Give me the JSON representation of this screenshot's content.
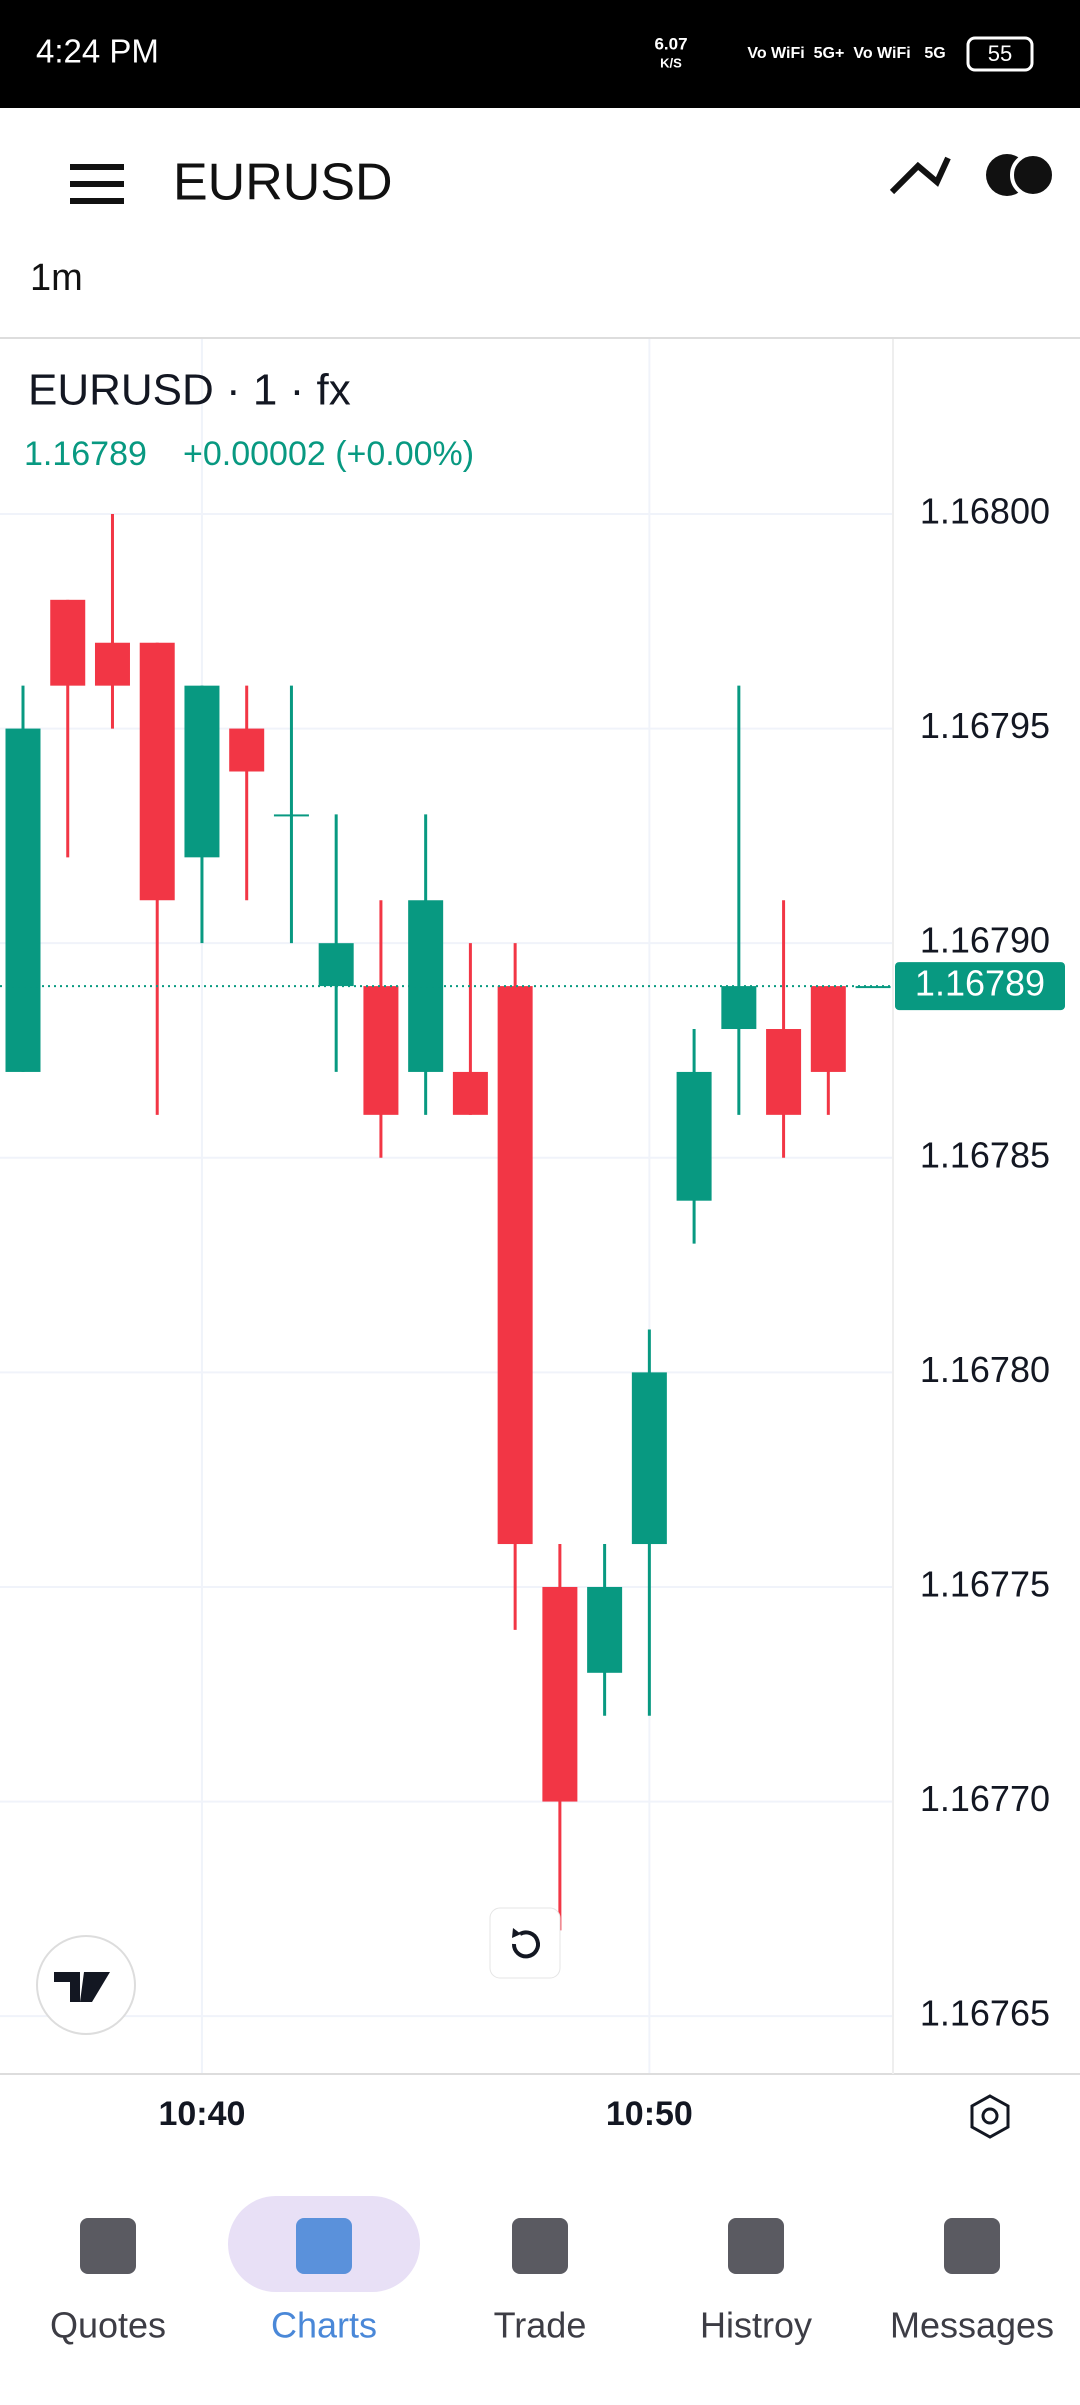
{
  "status_bar": {
    "time": "4:24 PM",
    "speed": "6.07",
    "speed_unit": "K/S",
    "indicators": [
      "Vo WiFi",
      "5G+",
      "Vo WiFi",
      "5G"
    ],
    "battery": "55"
  },
  "app_bar": {
    "title": "EURUSD",
    "interval": "1m"
  },
  "chart_data": {
    "type": "candlestick",
    "title": "EURUSD · 1 · fx",
    "change": "+0.00002 (+0.00%)",
    "last_price": 1.16789,
    "categories": [
      null,
      null,
      null,
      null,
      "10:40",
      null,
      null,
      null,
      null,
      null,
      null,
      null,
      null,
      null,
      "10:50",
      null,
      null,
      null,
      null,
      null
    ],
    "series": [
      {
        "open": [
          1.16787,
          1.16798,
          1.16797,
          1.16797,
          1.16792,
          1.16795,
          1.16793,
          1.16789,
          1.16789,
          1.16787,
          1.16787,
          1.16789,
          1.16775,
          1.16773,
          1.16776,
          1.16784,
          1.16788,
          1.16788,
          1.16789,
          1.16789
        ],
        "high": [
          1.16796,
          1.16798,
          1.168,
          1.16797,
          1.16796,
          1.16796,
          1.16796,
          1.16793,
          1.16791,
          1.16793,
          1.1679,
          1.1679,
          1.16776,
          1.16776,
          1.16781,
          1.16788,
          1.16796,
          1.16791,
          1.16789,
          1.16789
        ],
        "low": [
          1.16787,
          1.16792,
          1.16795,
          1.16786,
          1.1679,
          1.16791,
          1.1679,
          1.16787,
          1.16785,
          1.16786,
          1.16786,
          1.16774,
          1.16767,
          1.16772,
          1.16772,
          1.16783,
          1.16786,
          1.16785,
          1.16786,
          1.16789
        ],
        "close": [
          1.16795,
          1.16796,
          1.16796,
          1.16791,
          1.16796,
          1.16794,
          1.16793,
          1.1679,
          1.16786,
          1.16791,
          1.16786,
          1.16776,
          1.1677,
          1.16775,
          1.1678,
          1.16787,
          1.16789,
          1.16786,
          1.16787,
          1.16789
        ]
      }
    ],
    "up_color": "#089981",
    "down_color": "#f23645",
    "ylim": [
      1.16763,
      1.16804
    ],
    "yticks": [
      {
        "value": 1.168,
        "label": "1.16800"
      },
      1.16795,
      {
        "value": 1.1679,
        "label": "1.16790"
      },
      1.16785,
      {
        "value": 1.1678,
        "label": "1.16780"
      },
      1.16775,
      {
        "value": 1.1677,
        "label": "1.16770"
      },
      1.16765
    ],
    "grid": true
  },
  "nav": {
    "items": [
      "Quotes",
      "Charts",
      "Trade",
      "Histroy",
      "Messages"
    ],
    "active": 1
  }
}
